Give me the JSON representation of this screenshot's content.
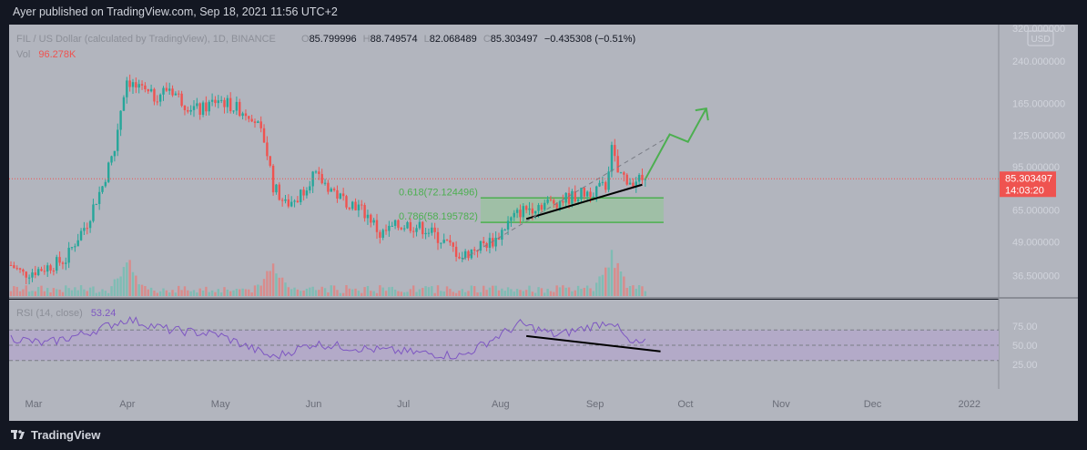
{
  "header": {
    "published": "Ayer published on TradingView.com, Sep 18, 2021 11:56 UTC+2"
  },
  "legend": {
    "symbol": "FIL / US Dollar (calculated by TradingView), 1D, BINANCE",
    "o_label": "O",
    "o_value": "85.799996",
    "h_label": "H",
    "h_value": "88.749574",
    "l_label": "L",
    "l_value": "82.068489",
    "c_label": "C",
    "c_value": "85.303497",
    "change": "−0.435308 (−0.51%)",
    "vol_label": "Vol",
    "vol_value": "96.278K",
    "rsi_label": "RSI (14, close)",
    "rsi_value": "53.24"
  },
  "currency_badge": "USD",
  "price_axis": [
    "320.000000",
    "240.000000",
    "165.000000",
    "125.000000",
    "95.000000",
    "65.000000",
    "49.000000",
    "36.500000"
  ],
  "last_price": {
    "value": "85.303497",
    "countdown": "14:03:20"
  },
  "rsi_axis": [
    "75.00",
    "50.00",
    "25.00"
  ],
  "time_axis": [
    "Mar",
    "Apr",
    "May",
    "Jun",
    "Jul",
    "Aug",
    "Sep",
    "Oct",
    "Nov",
    "Dec",
    "2022"
  ],
  "fib_labels": {
    "upper": "0.618(72.124496)",
    "lower": "0.786(58.195782)"
  },
  "colors": {
    "bg": "#131722",
    "chart_bg": "#b2b5be",
    "up": "#26a69a",
    "down": "#ef5350",
    "rsi": "#7e57c2",
    "fib": "#4caf50",
    "text": "#d1d4dc",
    "last_price_bg": "#ef5350"
  },
  "brand": {
    "name": "TradingView"
  },
  "chart_data": {
    "type": "candlestick",
    "series_name": "FIL / US Dollar",
    "price_scale": "log",
    "ylim": [
      30,
      330
    ],
    "price_ticks": [
      320,
      240,
      165,
      125,
      95,
      65,
      49,
      36.5
    ],
    "time_ticks": [
      "Mar",
      "Apr",
      "May",
      "Jun",
      "Jul",
      "Aug",
      "Sep",
      "Oct",
      "Nov",
      "Dec",
      "2022"
    ],
    "period": "2021-02-22 to 2021-09-18",
    "close_path": [
      [
        "2021-02-22",
        40
      ],
      [
        "2021-02-26",
        37
      ],
      [
        "2021-03-05",
        39
      ],
      [
        "2021-03-12",
        42
      ],
      [
        "2021-03-19",
        58
      ],
      [
        "2021-03-24",
        80
      ],
      [
        "2021-03-28",
        110
      ],
      [
        "2021-04-01",
        205
      ],
      [
        "2021-04-05",
        185
      ],
      [
        "2021-04-10",
        175
      ],
      [
        "2021-04-15",
        190
      ],
      [
        "2021-04-20",
        165
      ],
      [
        "2021-04-25",
        155
      ],
      [
        "2021-05-01",
        172
      ],
      [
        "2021-05-06",
        160
      ],
      [
        "2021-05-12",
        150
      ],
      [
        "2021-05-16",
        120
      ],
      [
        "2021-05-19",
        80
      ],
      [
        "2021-05-23",
        68
      ],
      [
        "2021-05-27",
        72
      ],
      [
        "2021-06-01",
        88
      ],
      [
        "2021-06-06",
        80
      ],
      [
        "2021-06-10",
        72
      ],
      [
        "2021-06-15",
        68
      ],
      [
        "2021-06-20",
        60
      ],
      [
        "2021-06-23",
        52
      ],
      [
        "2021-06-28",
        56
      ],
      [
        "2021-07-02",
        57
      ],
      [
        "2021-07-08",
        55
      ],
      [
        "2021-07-14",
        49
      ],
      [
        "2021-07-20",
        43
      ],
      [
        "2021-07-25",
        47
      ],
      [
        "2021-07-31",
        50
      ],
      [
        "2021-08-04",
        58
      ],
      [
        "2021-08-08",
        64
      ],
      [
        "2021-08-14",
        68
      ],
      [
        "2021-08-20",
        70
      ],
      [
        "2021-08-27",
        74
      ],
      [
        "2021-09-05",
        80
      ],
      [
        "2021-09-07",
        110
      ],
      [
        "2021-09-09",
        90
      ],
      [
        "2021-09-13",
        84
      ],
      [
        "2021-09-18",
        85.3
      ]
    ],
    "volume_peaks": [
      [
        "2021-04-01",
        120000
      ],
      [
        "2021-05-19",
        110000
      ],
      [
        "2021-09-07",
        130000
      ]
    ],
    "rsi": {
      "period": 14,
      "levels": [
        70,
        50,
        30
      ],
      "last": 53.24,
      "path": [
        [
          "2021-02-22",
          60
        ],
        [
          "2021-03-05",
          52
        ],
        [
          "2021-03-19",
          66
        ],
        [
          "2021-04-01",
          84
        ],
        [
          "2021-04-15",
          70
        ],
        [
          "2021-05-01",
          64
        ],
        [
          "2021-05-19",
          34
        ],
        [
          "2021-06-01",
          52
        ],
        [
          "2021-06-22",
          44
        ],
        [
          "2021-07-20",
          36
        ],
        [
          "2021-08-08",
          78
        ],
        [
          "2021-08-20",
          63
        ],
        [
          "2021-09-07",
          82
        ],
        [
          "2021-09-13",
          52
        ],
        [
          "2021-09-18",
          53.24
        ]
      ]
    },
    "fibonacci": [
      {
        "level": 0.618,
        "price": 72.124496
      },
      {
        "level": 0.786,
        "price": 58.195782
      }
    ],
    "trendlines": [
      {
        "from": [
          "2021-08-10",
          60
        ],
        "to": [
          "2021-09-17",
          81
        ],
        "pane": "price"
      },
      {
        "from": [
          "2021-08-10",
          62
        ],
        "to": [
          "2021-09-23",
          42
        ],
        "pane": "rsi"
      }
    ],
    "projection_path": [
      [
        "2021-09-18",
        85
      ],
      [
        "2021-09-26",
        126
      ],
      [
        "2021-10-02",
        118
      ],
      [
        "2021-10-08",
        158
      ]
    ]
  }
}
